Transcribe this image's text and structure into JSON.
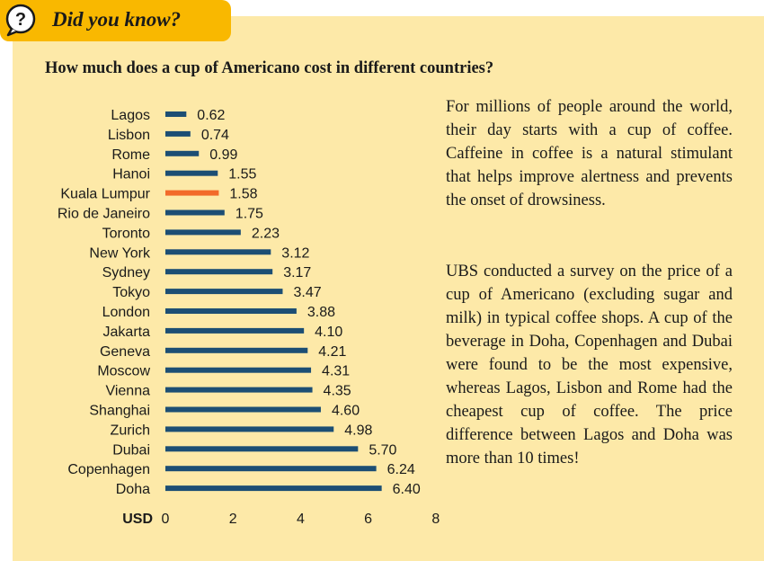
{
  "badge": {
    "text": "Did you know?",
    "icon": "question-bubble-icon"
  },
  "colors": {
    "badge": "#f9b800",
    "panel": "#fde9a8",
    "bar": "#1c4e74",
    "highlight": "#f26a2a"
  },
  "text": {
    "paragraph1": "For millions of people around the world, their day starts with a cup of coffee. Caffeine in coffee is a natural stimulant that helps improve alertness and prevents the onset of drowsiness.",
    "paragraph2": "UBS conducted a survey on the price of a cup of Americano (excluding sugar and milk) in typical coffee shops. A cup of the beverage in Doha, Copenhagen and Dubai were found to be the most expensive, whereas Lagos, Lisbon and Rome had the cheapest cup of coffee. The price difference between Lagos and Doha was more than 10 times!"
  },
  "chart_data": {
    "type": "bar",
    "orientation": "horizontal",
    "title": "How much does a cup of Americano cost in different countries?",
    "xlabel": "USD",
    "xlim": [
      0,
      8
    ],
    "xticks": [
      0,
      2,
      4,
      6,
      8
    ],
    "grid": false,
    "categories": [
      "Lagos",
      "Lisbon",
      "Rome",
      "Hanoi",
      "Kuala Lumpur",
      "Rio de Janeiro",
      "Toronto",
      "New York",
      "Sydney",
      "Tokyo",
      "London",
      "Jakarta",
      "Geneva",
      "Moscow",
      "Vienna",
      "Shanghai",
      "Zurich",
      "Dubai",
      "Copenhagen",
      "Doha"
    ],
    "values": [
      0.62,
      0.74,
      0.99,
      1.55,
      1.58,
      1.75,
      2.23,
      3.12,
      3.17,
      3.47,
      3.88,
      4.1,
      4.21,
      4.31,
      4.35,
      4.6,
      4.98,
      5.7,
      6.24,
      6.4
    ],
    "value_labels": [
      "0.62",
      "0.74",
      "0.99",
      "1.55",
      "1.58",
      "1.75",
      "2.23",
      "3.12",
      "3.17",
      "3.47",
      "3.88",
      "4.10",
      "4.21",
      "4.31",
      "4.35",
      "4.60",
      "4.98",
      "5.70",
      "6.24",
      "6.40"
    ],
    "highlight": "Kuala Lumpur"
  }
}
